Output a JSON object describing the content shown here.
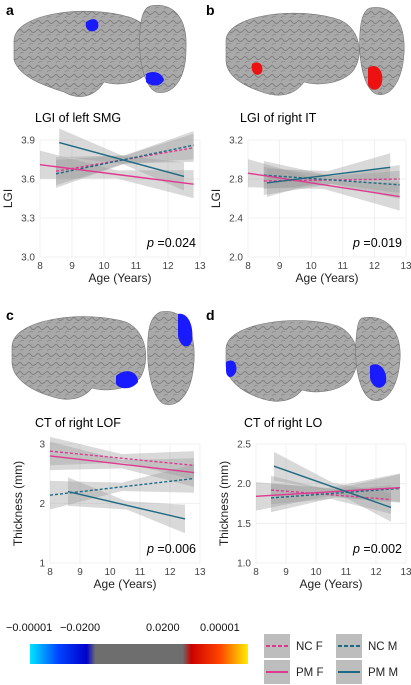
{
  "panels": [
    {
      "letter": "a",
      "title": "LGI of left SMG",
      "p_label": "p",
      "p_value": "=0.024",
      "xlabel": "Age (Years)",
      "ylabel": "LGI",
      "xticks": [
        "8",
        "9",
        "10",
        "11",
        "12",
        "13"
      ],
      "yticks": [
        "3.0",
        "3.3",
        "3.6",
        "3.9"
      ]
    },
    {
      "letter": "b",
      "title": "LGI of right IT",
      "p_label": "p",
      "p_value": "=0.019",
      "xlabel": "Age (Years)",
      "ylabel": "LGI",
      "xticks": [
        "8",
        "9",
        "10",
        "11",
        "12",
        "13"
      ],
      "yticks": [
        "2.0",
        "2.4",
        "2.8",
        "3.2"
      ]
    },
    {
      "letter": "c",
      "title": "CT of right LOF",
      "p_label": "p",
      "p_value": "=0.006",
      "xlabel": "Age (Years)",
      "ylabel": "Thickness (mm)",
      "xticks": [
        "8",
        "9",
        "10",
        "11",
        "12",
        "13"
      ],
      "yticks": [
        "1",
        "2",
        "3"
      ]
    },
    {
      "letter": "d",
      "title": "CT of right LO",
      "p_label": "p",
      "p_value": "=0.002",
      "xlabel": "Age (Years)",
      "ylabel": "Thickness (mm)",
      "xticks": [
        "8",
        "9",
        "10",
        "11",
        "12",
        "13"
      ],
      "yticks": [
        "1.0",
        "1.5",
        "2.0",
        "2.5"
      ]
    }
  ],
  "colorbar": {
    "labels": [
      "−0.00001",
      "−0.0200",
      "0.0200",
      "0.00001"
    ],
    "stops": [
      "#00e5ff",
      "#0044ff",
      "#0000cc",
      "#6e6e6e",
      "#6e6e6e",
      "#cc0000",
      "#ff4400",
      "#ffee00"
    ]
  },
  "legend": {
    "entries": [
      {
        "label": "NC F",
        "color": "#e0388f",
        "dash": "dashed"
      },
      {
        "label": "NC M",
        "color": "#1e6a82",
        "dash": "dashed"
      },
      {
        "label": "PM F",
        "color": "#e0388f",
        "dash": "solid"
      },
      {
        "label": "PM M",
        "color": "#1e6a82",
        "dash": "solid"
      }
    ]
  },
  "colors": {
    "female": "#e0388f",
    "male": "#1e6a82",
    "brain": "#a6a6a6",
    "blue_region": "#1a1aff",
    "red_region": "#ee1111",
    "ci_band": "#9a9a9a"
  },
  "chart_data": [
    {
      "type": "line",
      "panel": "a",
      "xlim": [
        8,
        13
      ],
      "ylim": [
        3.0,
        3.9
      ],
      "series": [
        {
          "name": "NC F",
          "x": [
            8.5,
            12.8
          ],
          "y": [
            3.66,
            3.84
          ],
          "style": "dashed",
          "color": "#e0388f"
        },
        {
          "name": "NC M",
          "x": [
            8.5,
            12.8
          ],
          "y": [
            3.64,
            3.86
          ],
          "style": "dashed",
          "color": "#1e6a82"
        },
        {
          "name": "PM F",
          "x": [
            8.0,
            12.8
          ],
          "y": [
            3.71,
            3.56
          ],
          "style": "solid",
          "color": "#e0388f"
        },
        {
          "name": "PM M",
          "x": [
            8.6,
            12.5
          ],
          "y": [
            3.88,
            3.62
          ],
          "style": "solid",
          "color": "#1e6a82"
        }
      ]
    },
    {
      "type": "line",
      "panel": "b",
      "xlim": [
        8,
        13
      ],
      "ylim": [
        2.0,
        3.2
      ],
      "series": [
        {
          "name": "NC F",
          "x": [
            8.5,
            12.8
          ],
          "y": [
            2.78,
            2.8
          ],
          "style": "dashed",
          "color": "#e0388f"
        },
        {
          "name": "NC M",
          "x": [
            8.5,
            12.8
          ],
          "y": [
            2.84,
            2.74
          ],
          "style": "dashed",
          "color": "#1e6a82"
        },
        {
          "name": "PM F",
          "x": [
            8.0,
            12.8
          ],
          "y": [
            2.86,
            2.62
          ],
          "style": "solid",
          "color": "#e0388f"
        },
        {
          "name": "PM M",
          "x": [
            8.6,
            12.5
          ],
          "y": [
            2.76,
            2.92
          ],
          "style": "solid",
          "color": "#1e6a82"
        }
      ]
    },
    {
      "type": "line",
      "panel": "c",
      "xlim": [
        8,
        13
      ],
      "ylim": [
        1,
        3
      ],
      "series": [
        {
          "name": "NC F",
          "x": [
            8.0,
            12.8
          ],
          "y": [
            2.88,
            2.64
          ],
          "style": "dashed",
          "color": "#e0388f"
        },
        {
          "name": "NC M",
          "x": [
            8.0,
            12.8
          ],
          "y": [
            2.14,
            2.42
          ],
          "style": "dashed",
          "color": "#1e6a82"
        },
        {
          "name": "PM F",
          "x": [
            8.0,
            12.8
          ],
          "y": [
            2.8,
            2.52
          ],
          "style": "solid",
          "color": "#e0388f"
        },
        {
          "name": "PM M",
          "x": [
            8.6,
            12.5
          ],
          "y": [
            2.2,
            1.74
          ],
          "style": "solid",
          "color": "#1e6a82"
        }
      ]
    },
    {
      "type": "line",
      "panel": "d",
      "xlim": [
        8,
        13
      ],
      "ylim": [
        1.0,
        2.5
      ],
      "series": [
        {
          "name": "NC F",
          "x": [
            8.5,
            12.5
          ],
          "y": [
            1.92,
            1.8
          ],
          "style": "dashed",
          "color": "#e0388f"
        },
        {
          "name": "NC M",
          "x": [
            8.5,
            12.8
          ],
          "y": [
            1.82,
            1.94
          ],
          "style": "dashed",
          "color": "#1e6a82"
        },
        {
          "name": "PM F",
          "x": [
            8.0,
            12.8
          ],
          "y": [
            1.84,
            1.95
          ],
          "style": "solid",
          "color": "#e0388f"
        },
        {
          "name": "PM M",
          "x": [
            8.6,
            12.5
          ],
          "y": [
            2.22,
            1.7
          ],
          "style": "solid",
          "color": "#1e6a82"
        }
      ]
    }
  ]
}
